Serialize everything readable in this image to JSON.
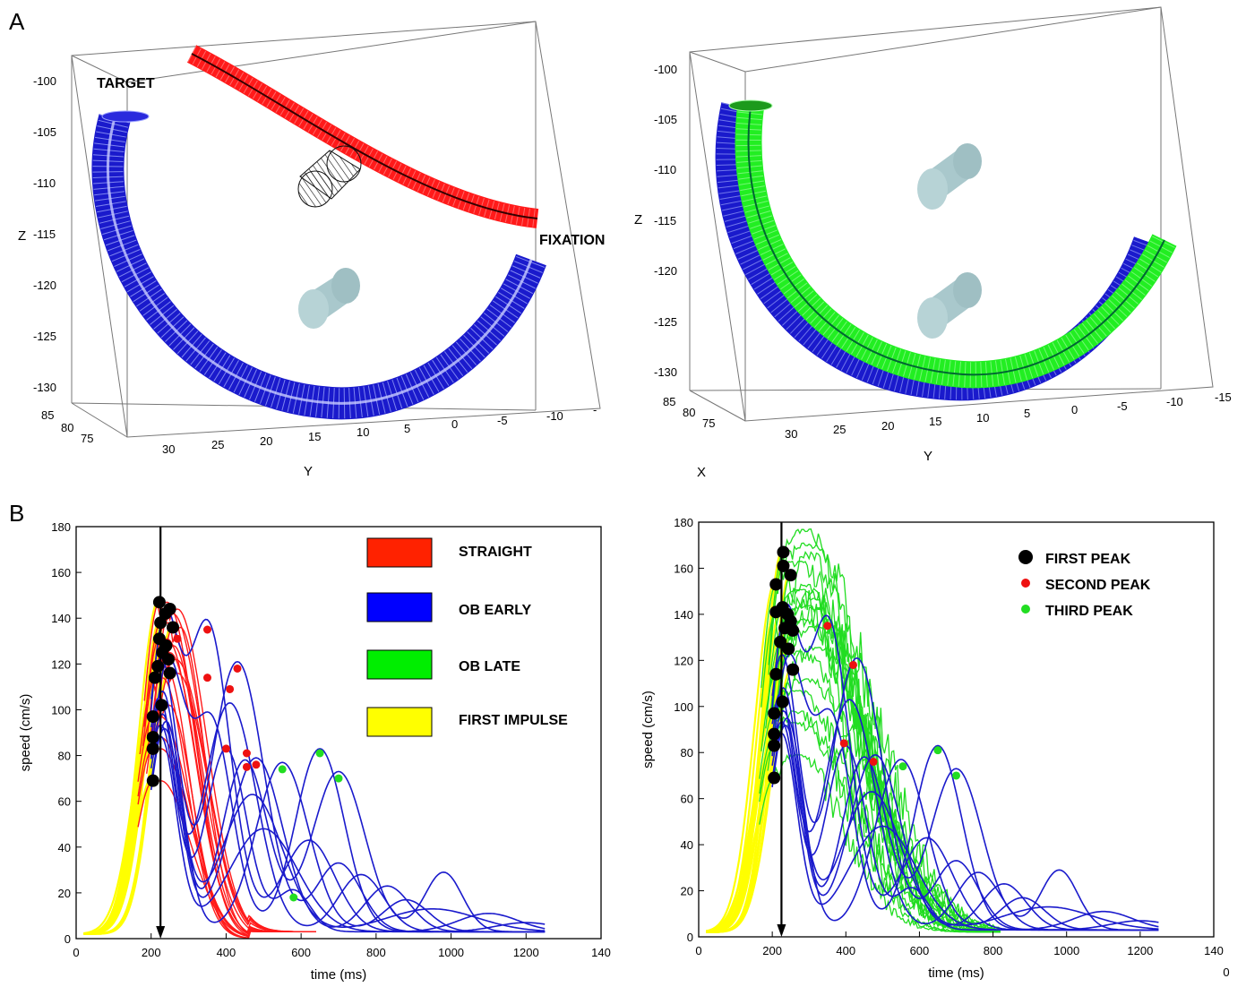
{
  "panels": {
    "a": "A",
    "b": "B"
  },
  "plot3d": {
    "left": {
      "z_label": "Z",
      "y_label": "Y",
      "x_label": "",
      "z_ticks": [
        "-100",
        "-105",
        "-110",
        "-115",
        "-120",
        "-125",
        "-130"
      ],
      "x_ticks": [
        "85",
        "80",
        "75"
      ],
      "y_ticks": [
        "30",
        "25",
        "20",
        "15",
        "10",
        "5",
        "0",
        "-5",
        "-10",
        "-"
      ],
      "target_label": "TARGET",
      "fixation_label": "FIXATION"
    },
    "right": {
      "z_label": "Z",
      "y_label": "Y",
      "x_label": "X",
      "z_ticks": [
        "-100",
        "-105",
        "-110",
        "-115",
        "-120",
        "-125",
        "-130"
      ],
      "x_ticks": [
        "85",
        "80",
        "75"
      ],
      "y_ticks": [
        "30",
        "25",
        "20",
        "15",
        "10",
        "5",
        "0",
        "-5",
        "-10",
        "-15"
      ]
    },
    "colors": {
      "straight": "#ff1a1a",
      "ob_early": "#1a1acc",
      "ob_late": "#22ee22",
      "obstacle": "#a9c8cc"
    }
  },
  "chart_data": [
    {
      "type": "line",
      "xlabel": "time (ms)",
      "ylabel": "speed (cm/s)",
      "xlim": [
        0,
        1400
      ],
      "ylim": [
        0,
        180
      ],
      "x_tick_labels": [
        "0",
        "200",
        "400",
        "600",
        "800",
        "1000",
        "1200",
        "140"
      ],
      "y_tick_labels": [
        "0",
        "20",
        "40",
        "60",
        "80",
        "100",
        "120",
        "140",
        "160",
        "180"
      ],
      "marker_time_ms": 225,
      "legend": [
        {
          "name": "STRAIGHT",
          "color": "#ff2200"
        },
        {
          "name": "OB EARLY",
          "color": "#0000ff"
        },
        {
          "name": "OB LATE",
          "color": "#00ee00"
        },
        {
          "name": "FIRST IMPULSE",
          "color": "#ffff00"
        }
      ],
      "first_peaks": [
        [
          222,
          147
        ],
        [
          225,
          138
        ],
        [
          238,
          142
        ],
        [
          250,
          144
        ],
        [
          258,
          136
        ],
        [
          222,
          131
        ],
        [
          230,
          125
        ],
        [
          240,
          128
        ],
        [
          246,
          122
        ],
        [
          218,
          119
        ],
        [
          250,
          116
        ],
        [
          210,
          114
        ],
        [
          228,
          102
        ],
        [
          205,
          97
        ],
        [
          205,
          88
        ],
        [
          205,
          83
        ],
        [
          205,
          69
        ]
      ],
      "second_peaks": [
        [
          270,
          131
        ],
        [
          350,
          135
        ],
        [
          430,
          118
        ],
        [
          350,
          114
        ],
        [
          410,
          109
        ],
        [
          400,
          83
        ],
        [
          455,
          81
        ],
        [
          455,
          75
        ],
        [
          480,
          76
        ]
      ],
      "third_peaks": [
        [
          650,
          81
        ],
        [
          700,
          70
        ],
        [
          550,
          74
        ],
        [
          580,
          18
        ]
      ]
    },
    {
      "type": "line",
      "xlabel": "time (ms)",
      "ylabel": "speed (cm/s)",
      "xlim": [
        0,
        1400
      ],
      "ylim": [
        0,
        180
      ],
      "x_tick_labels": [
        "0",
        "200",
        "400",
        "600",
        "800",
        "1000",
        "1200",
        "140"
      ],
      "x_tick_label_cut": "0",
      "y_tick_labels": [
        "0",
        "20",
        "40",
        "60",
        "80",
        "100",
        "120",
        "140",
        "160",
        "180"
      ],
      "marker_time_ms": 225,
      "legend": [
        {
          "name": "FIRST PEAK",
          "color": "#000000"
        },
        {
          "name": "SECOND PEAK",
          "color": "#ee1111"
        },
        {
          "name": "THIRD PEAK",
          "color": "#22dd22"
        }
      ],
      "first_peaks": [
        [
          230,
          167
        ],
        [
          230,
          161
        ],
        [
          210,
          153
        ],
        [
          250,
          157
        ],
        [
          210,
          141
        ],
        [
          228,
          143
        ],
        [
          242,
          140
        ],
        [
          250,
          137
        ],
        [
          234,
          134
        ],
        [
          256,
          133
        ],
        [
          222,
          128
        ],
        [
          244,
          125
        ],
        [
          256,
          116
        ],
        [
          210,
          114
        ],
        [
          228,
          102
        ],
        [
          205,
          97
        ],
        [
          205,
          88
        ],
        [
          205,
          83
        ],
        [
          205,
          69
        ]
      ],
      "second_peaks": [
        [
          350,
          135
        ],
        [
          420,
          118
        ],
        [
          395,
          84
        ],
        [
          475,
          76
        ]
      ],
      "third_peaks": [
        [
          650,
          81
        ],
        [
          700,
          70
        ],
        [
          555,
          74
        ]
      ]
    }
  ]
}
